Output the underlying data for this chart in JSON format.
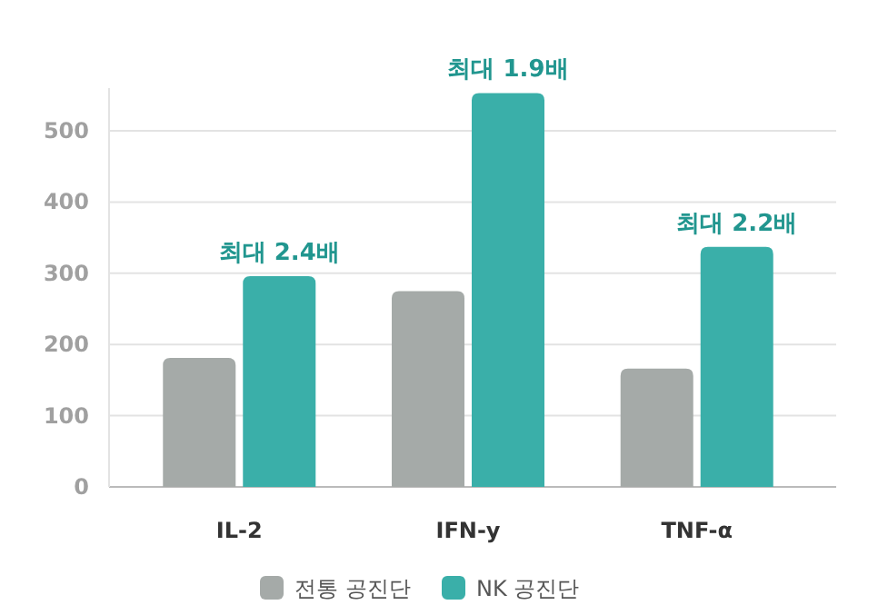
{
  "chart_data": {
    "type": "bar",
    "categories": [
      "IL-2",
      "IFN-y",
      "TNF-α"
    ],
    "series": [
      {
        "name": "전통 공진단",
        "color": "#a5aaa8",
        "values": [
          181,
          275,
          166
        ]
      },
      {
        "name": "NK 공진단",
        "color": "#3aafa9",
        "values": [
          296,
          553,
          337
        ]
      }
    ],
    "ylim": [
      0,
      560
    ],
    "yticks": [
      0,
      100,
      200,
      300,
      400,
      500
    ],
    "grid": "y",
    "legend": "bottom",
    "annotations": [
      {
        "text": "최대 2.4배",
        "x": "IL-2",
        "y": 296
      },
      {
        "text": "최대 1.9배",
        "x": "IFN-y",
        "y": 553
      },
      {
        "text": "최대 2.2배",
        "x": "TNF-α",
        "y": 337
      }
    ]
  }
}
